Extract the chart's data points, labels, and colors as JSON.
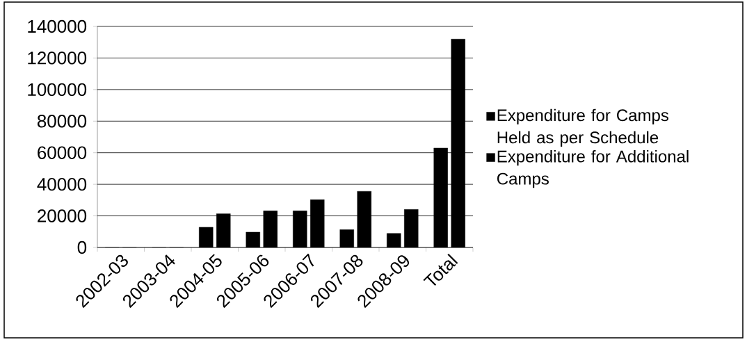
{
  "chart_data": {
    "type": "bar",
    "categories": [
      "2002-03",
      "2003-04",
      "2004-05",
      "2005-06",
      "2006-07",
      "2007-08",
      "2008-09",
      "Total"
    ],
    "series": [
      {
        "name": "Expenditure for Camps Held as per Schedule",
        "color": "#000000",
        "values": [
          0,
          0,
          12800,
          9700,
          23200,
          11300,
          8900,
          63000
        ]
      },
      {
        "name": "Expenditure for Additional Camps",
        "color": "#000000",
        "values": [
          0,
          0,
          21400,
          23200,
          30300,
          35600,
          24100,
          132000
        ]
      }
    ],
    "ylim": [
      0,
      140000
    ],
    "yticks": [
      0,
      20000,
      40000,
      60000,
      80000,
      100000,
      120000,
      140000
    ],
    "grid": "y",
    "legend": "right"
  }
}
